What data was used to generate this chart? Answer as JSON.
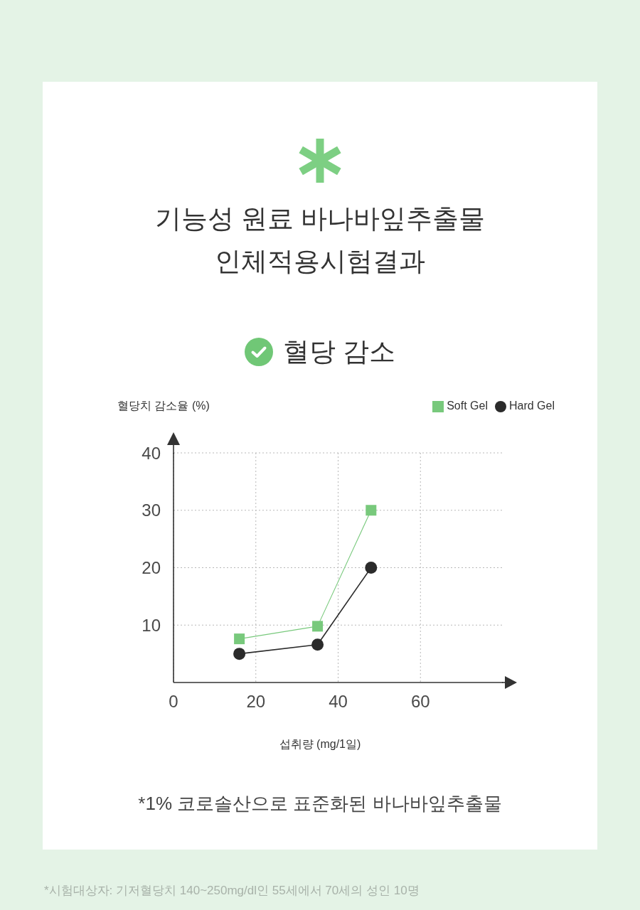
{
  "chart_data": {
    "type": "line",
    "title": "기능성 원료 바나바잎추출물 인체적용시험결과",
    "subtitle": "혈당 감소",
    "ylabel": "혈당치 감소율 (%)",
    "xlabel": "섭취량 (mg/1일)",
    "annotations": [
      "*1% 코로솔산으로 표준화된 바나바잎추출물",
      "*시험대상자: 기저혈당치 140~250mg/dl인 55세에서 70세의 성인 10명"
    ],
    "x": [
      16,
      35,
      48
    ],
    "series": [
      {
        "name": "Soft Gel",
        "color": "#78c97c",
        "marker": "square",
        "values": [
          7.6,
          9.8,
          30
        ]
      },
      {
        "name": "Hard Gel",
        "color": "#2b2b2b",
        "marker": "circle",
        "values": [
          5,
          6.6,
          20
        ]
      }
    ],
    "xlim": [
      0,
      80
    ],
    "xticks": [
      0,
      20,
      40,
      60
    ],
    "ylim": [
      0,
      40
    ],
    "yticks": [
      10,
      20,
      30,
      40
    ],
    "grid": true,
    "legend": "top right"
  }
}
